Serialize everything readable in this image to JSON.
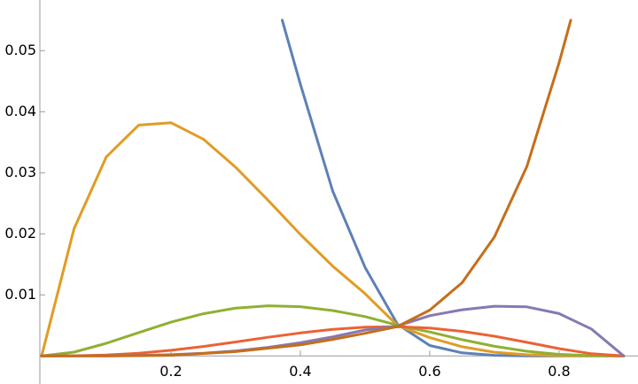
{
  "chart_data": {
    "type": "line",
    "xlim": [
      0,
      0.922
    ],
    "ylim": [
      -0.0046,
      0.0583
    ],
    "xticks": [
      0.2,
      0.4,
      0.6,
      0.8
    ],
    "yticks": [
      0.01,
      0.02,
      0.03,
      0.04,
      0.05
    ],
    "series": [
      {
        "color": "#5e81b5",
        "x": [
          0.372,
          0.4,
          0.45,
          0.5,
          0.55,
          0.6,
          0.65,
          0.7,
          0.75,
          0.8,
          0.85,
          0.9
        ],
        "values": [
          0.055,
          0.0445,
          0.027,
          0.0145,
          0.0052,
          0.0017,
          0.0005,
          0.0001,
          0,
          0,
          0,
          0
        ]
      },
      {
        "color": "#e19c24",
        "x": [
          0,
          0.05,
          0.1,
          0.15,
          0.2,
          0.25,
          0.3,
          0.35,
          0.4,
          0.45,
          0.5,
          0.55,
          0.6,
          0.65,
          0.7,
          0.75,
          0.8,
          0.85,
          0.9
        ],
        "values": [
          0,
          0.0208,
          0.0326,
          0.0378,
          0.0382,
          0.0355,
          0.0309,
          0.0255,
          0.0199,
          0.0147,
          0.0102,
          0.005,
          0.003,
          0.0015,
          0.0006,
          0.0002,
          6e-05,
          0,
          0
        ]
      },
      {
        "color": "#8fb032",
        "x": [
          0,
          0.05,
          0.1,
          0.15,
          0.2,
          0.25,
          0.3,
          0.35,
          0.4,
          0.45,
          0.5,
          0.55,
          0.6,
          0.65,
          0.7,
          0.75,
          0.8,
          0.85,
          0.9
        ],
        "values": [
          0,
          0.00062,
          0.00206,
          0.00382,
          0.00553,
          0.00691,
          0.00783,
          0.00821,
          0.00806,
          0.00743,
          0.00644,
          0.00502,
          0.00392,
          0.00266,
          0.00158,
          0.00076,
          0.00026,
          4e-05,
          0
        ]
      },
      {
        "color": "#eb6235",
        "x": [
          0,
          0.05,
          0.1,
          0.15,
          0.2,
          0.25,
          0.3,
          0.35,
          0.4,
          0.45,
          0.5,
          0.55,
          0.6,
          0.65,
          0.7,
          0.75,
          0.8,
          0.85,
          0.9
        ],
        "values": [
          0,
          2e-05,
          0.00015,
          0.00045,
          0.00092,
          0.00155,
          0.00228,
          0.00305,
          0.00376,
          0.00434,
          0.0047,
          0.00479,
          0.00457,
          0.00403,
          0.00322,
          0.00223,
          0.0012,
          0.00036,
          0
        ]
      },
      {
        "color": "#8778b3",
        "x": [
          0,
          0.1,
          0.15,
          0.2,
          0.25,
          0.3,
          0.35,
          0.4,
          0.45,
          0.5,
          0.55,
          0.6,
          0.65,
          0.7,
          0.75,
          0.8,
          0.85,
          0.9
        ],
        "values": [
          0,
          1e-05,
          6e-05,
          0.00019,
          0.00043,
          0.00082,
          0.0014,
          0.00217,
          0.00313,
          0.00424,
          0.0049,
          0.00659,
          0.00756,
          0.00814,
          0.00804,
          0.00694,
          0.00442,
          0
        ]
      },
      {
        "color": "#c56e1a",
        "x": [
          0,
          0.1,
          0.2,
          0.3,
          0.4,
          0.45,
          0.5,
          0.55,
          0.6,
          0.65,
          0.7,
          0.75,
          0.8,
          0.818
        ],
        "values": [
          0,
          0,
          0.0001,
          0.0007,
          0.0018,
          0.0027,
          0.0037,
          0.0048,
          0.0075,
          0.012,
          0.0195,
          0.031,
          0.048,
          0.055
        ]
      }
    ]
  }
}
